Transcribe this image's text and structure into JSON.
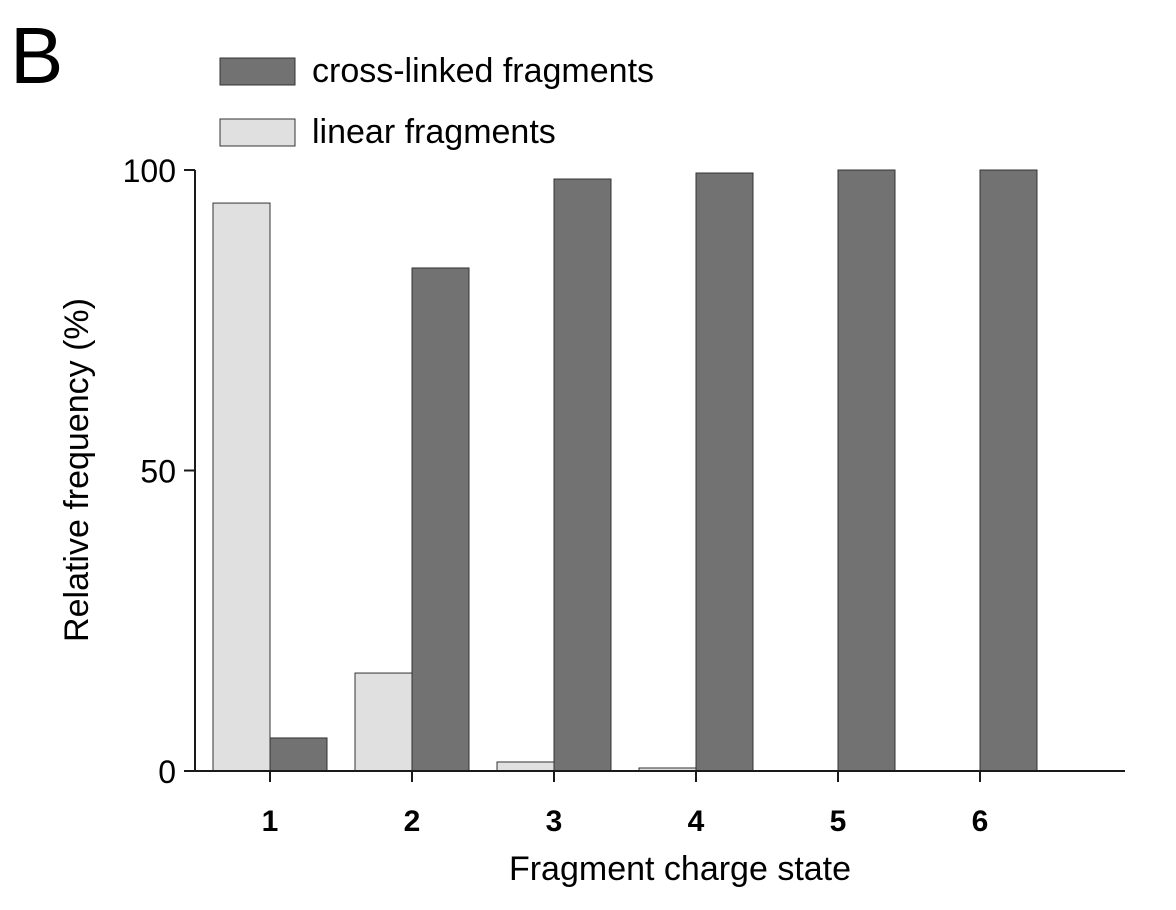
{
  "panel_label": "B",
  "chart_data": {
    "type": "bar",
    "title": "",
    "xlabel": "Fragment charge state",
    "ylabel": "Relative frequency (%)",
    "categories": [
      "1",
      "2",
      "3",
      "4",
      "5",
      "6"
    ],
    "ylim": [
      0,
      100
    ],
    "yticks": [
      "0",
      "50",
      "100"
    ],
    "grid": false,
    "legend_position": "top-left",
    "series": [
      {
        "name": "linear fragments",
        "color": "#e0e0e0",
        "values": [
          94.5,
          16.3,
          1.5,
          0.5,
          0,
          0
        ]
      },
      {
        "name": "cross-linked fragments",
        "color": "#727272",
        "values": [
          5.5,
          83.7,
          98.5,
          99.5,
          100,
          100
        ]
      }
    ],
    "legend_order": [
      "cross-linked fragments",
      "linear fragments"
    ]
  }
}
